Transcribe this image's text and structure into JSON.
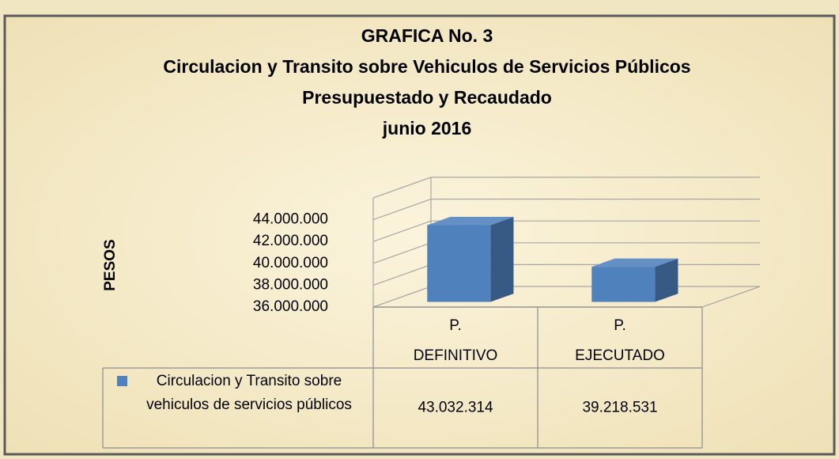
{
  "chart_data": {
    "type": "bar3d",
    "title_lines": [
      "GRAFICA No. 3",
      "Circulacion y Transito sobre Vehiculos de Servicios Públicos",
      "Presupuestado y  Recaudado",
      "junio 2016"
    ],
    "y_label": "PESOS",
    "categories": [
      "P. DEFINITIVO",
      "P. EJECUTADO"
    ],
    "category_lines": [
      [
        "P.",
        "DEFINITIVO"
      ],
      [
        "P.",
        "EJECUTADO"
      ]
    ],
    "series": [
      {
        "name": "Circulacion y Transito sobre vehiculos de servicios públicos",
        "color": "#4f81bd",
        "values": [
          43032314,
          39218531
        ],
        "value_labels": [
          "43.032.314",
          "39.218.531"
        ]
      }
    ],
    "ylim": [
      36000000,
      46000000
    ],
    "yticks": [
      {
        "value": 36000000,
        "label": "36.000.000"
      },
      {
        "value": 38000000,
        "label": "38.000.000"
      },
      {
        "value": 40000000,
        "label": "40.000.000"
      },
      {
        "value": 42000000,
        "label": "42.000.000"
      },
      {
        "value": 44000000,
        "label": "44.000.000"
      }
    ],
    "grid": true,
    "data_table": true
  }
}
